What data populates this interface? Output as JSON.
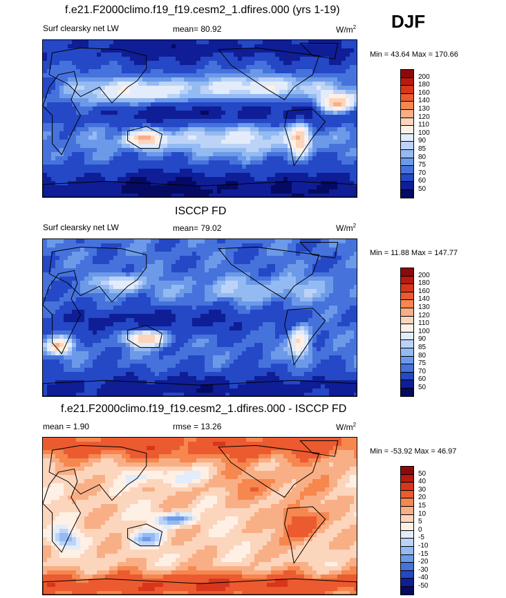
{
  "header": {
    "season": "DJF"
  },
  "panels": [
    {
      "title": "f.e21.F2000climo.f19_f19.cesm2_1.dfires.000 (yrs 1-19)",
      "left_label": "Surf clearsky net LW",
      "mid_label": "mean=  80.92",
      "units": "W/m",
      "units_sup": "2",
      "minmax": "Min =  43.64 Max = 170.66",
      "colorbar": {
        "labels": [
          "200",
          "180",
          "160",
          "140",
          "130",
          "120",
          "110",
          "100",
          "90",
          "85",
          "80",
          "75",
          "70",
          "60",
          "50"
        ],
        "colors": [
          "#8c0a0a",
          "#b81a10",
          "#d8361b",
          "#ec5a30",
          "#f5874f",
          "#f9af86",
          "#fcd5bd",
          "#fff0e6",
          "#e2ecfa",
          "#bcd3f7",
          "#94baf2",
          "#6c9ae8",
          "#4672dc",
          "#2448c6",
          "#0f1e96",
          "#050a62"
        ]
      },
      "field": "model"
    },
    {
      "title": "ISCCP FD",
      "left_label": "Surf clearsky net LW",
      "mid_label": "mean=  79.02",
      "units": "W/m",
      "units_sup": "2",
      "minmax": "Min =  11.88 Max = 147.77",
      "colorbar": {
        "labels": [
          "200",
          "180",
          "160",
          "140",
          "130",
          "120",
          "110",
          "100",
          "90",
          "85",
          "80",
          "75",
          "70",
          "60",
          "50"
        ],
        "colors": [
          "#8c0a0a",
          "#b81a10",
          "#d8361b",
          "#ec5a30",
          "#f5874f",
          "#f9af86",
          "#fcd5bd",
          "#fff0e6",
          "#e2ecfa",
          "#bcd3f7",
          "#94baf2",
          "#6c9ae8",
          "#4672dc",
          "#2448c6",
          "#0f1e96",
          "#050a62"
        ]
      },
      "field": "obs"
    },
    {
      "title": "f.e21.F2000climo.f19_f19.cesm2_1.dfires.000 - ISCCP FD",
      "left_label": "mean =   1.90",
      "mid_label": "rmse =  13.26",
      "units": "W/m",
      "units_sup": "2",
      "minmax": "Min = -53.92 Max =  46.97",
      "colorbar": {
        "labels": [
          "50",
          "40",
          "30",
          "20",
          "15",
          "10",
          "5",
          "0",
          "-5",
          "-10",
          "-15",
          "-20",
          "-30",
          "-40",
          "-50"
        ],
        "colors": [
          "#8c0a0a",
          "#b81a10",
          "#d8361b",
          "#ec5a30",
          "#f5874f",
          "#f9af86",
          "#fcd5bd",
          "#fff0e6",
          "#e2ecfa",
          "#bcd3f7",
          "#94baf2",
          "#6c9ae8",
          "#4672dc",
          "#2448c6",
          "#0f1e96",
          "#050a62"
        ]
      },
      "field": "diff"
    }
  ],
  "chart_data": {
    "type": "heatmap",
    "description_variable": "Surf clearsky net LW",
    "season": "DJF",
    "units": "W/m2",
    "panels": [
      {
        "title": "f.e21.F2000climo.f19_f19.cesm2_1.dfires.000 (yrs 1-19)",
        "mean": 80.92,
        "min": 43.64,
        "max": 170.66,
        "levels": [
          50,
          60,
          70,
          75,
          80,
          85,
          90,
          100,
          110,
          120,
          130,
          140,
          160,
          180,
          200
        ]
      },
      {
        "title": "ISCCP FD",
        "mean": 79.02,
        "min": 11.88,
        "max": 147.77,
        "levels": [
          50,
          60,
          70,
          75,
          80,
          85,
          90,
          100,
          110,
          120,
          130,
          140,
          160,
          180,
          200
        ]
      },
      {
        "title": "f.e21.F2000climo.f19_f19.cesm2_1.dfires.000 - ISCCP FD",
        "mean": 1.9,
        "rmse": 13.26,
        "min": -53.92,
        "max": 46.97,
        "levels": [
          -50,
          -40,
          -30,
          -20,
          -15,
          -10,
          -5,
          0,
          5,
          10,
          15,
          20,
          30,
          40,
          50
        ]
      }
    ]
  }
}
